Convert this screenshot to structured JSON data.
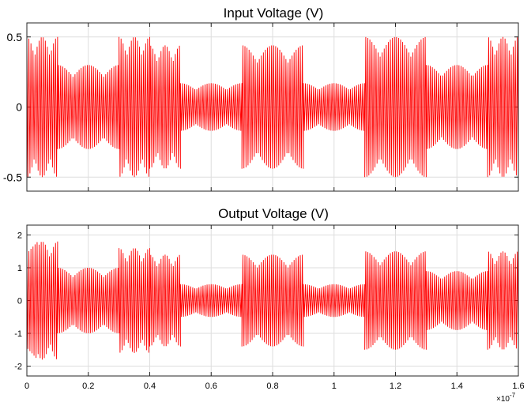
{
  "chart_data": [
    {
      "type": "line",
      "title": "Input Voltage (V)",
      "xlabel": "",
      "ylabel": "",
      "xlim": [
        0,
        1.6e-07
      ],
      "ylim": [
        -0.6,
        0.6
      ],
      "x_scale_label": "×10",
      "x_scale_exponent": "-7",
      "xticks": [
        0,
        0.2,
        0.4,
        0.6,
        0.8,
        1.0,
        1.2,
        1.4,
        1.6
      ],
      "yticks": [
        0.5,
        0,
        -0.5
      ],
      "yticklabels": [
        "0.5",
        "0",
        "-0.5"
      ],
      "grid": true,
      "color": "#ff0000",
      "series": [
        {
          "segments": [
            {
              "t_start": 0.0,
              "t_end": 1e-08,
              "amplitude": 0.5
            },
            {
              "t_start": 1e-08,
              "t_end": 3e-08,
              "amplitude": 0.3
            },
            {
              "t_start": 3e-08,
              "t_end": 4e-08,
              "amplitude": 0.5
            },
            {
              "t_start": 4e-08,
              "t_end": 5e-08,
              "amplitude": 0.44
            },
            {
              "t_start": 5e-08,
              "t_end": 7e-08,
              "amplitude": 0.17
            },
            {
              "t_start": 7e-08,
              "t_end": 9e-08,
              "amplitude": 0.44
            },
            {
              "t_start": 9e-08,
              "t_end": 1.1e-07,
              "amplitude": 0.17
            },
            {
              "t_start": 1.1e-07,
              "t_end": 1.3e-07,
              "amplitude": 0.5
            },
            {
              "t_start": 1.3e-07,
              "t_end": 1.5e-07,
              "amplitude": 0.3
            },
            {
              "t_start": 1.5e-07,
              "t_end": 1.6e-07,
              "amplitude": 0.5
            }
          ]
        }
      ]
    },
    {
      "type": "line",
      "title": "Output Voltage (V)",
      "xlabel": "",
      "ylabel": "",
      "xlim": [
        0,
        1.6e-07
      ],
      "ylim": [
        -2.3,
        2.3
      ],
      "x_scale_label": "×10",
      "x_scale_exponent": "-7",
      "xticks": [
        0,
        0.2,
        0.4,
        0.6,
        0.8,
        1.0,
        1.2,
        1.4,
        1.6
      ],
      "yticks": [
        2,
        1,
        0,
        -1,
        -2
      ],
      "yticklabels": [
        "2",
        "1",
        "0",
        "-1",
        "-2"
      ],
      "grid": true,
      "color": "#ff0000",
      "series": [
        {
          "segments": [
            {
              "t_start": 0.0,
              "t_end": 1e-08,
              "amplitude": 1.8
            },
            {
              "t_start": 1e-08,
              "t_end": 3e-08,
              "amplitude": 1.0
            },
            {
              "t_start": 3e-08,
              "t_end": 4e-08,
              "amplitude": 1.6
            },
            {
              "t_start": 4e-08,
              "t_end": 5e-08,
              "amplitude": 1.4
            },
            {
              "t_start": 5e-08,
              "t_end": 7e-08,
              "amplitude": 0.5
            },
            {
              "t_start": 7e-08,
              "t_end": 9e-08,
              "amplitude": 1.4
            },
            {
              "t_start": 9e-08,
              "t_end": 1.1e-07,
              "amplitude": 0.5
            },
            {
              "t_start": 1.1e-07,
              "t_end": 1.3e-07,
              "amplitude": 1.5
            },
            {
              "t_start": 1.3e-07,
              "t_end": 1.5e-07,
              "amplitude": 0.9
            },
            {
              "t_start": 1.5e-07,
              "t_end": 1.6e-07,
              "amplitude": 1.5
            }
          ]
        }
      ]
    }
  ]
}
